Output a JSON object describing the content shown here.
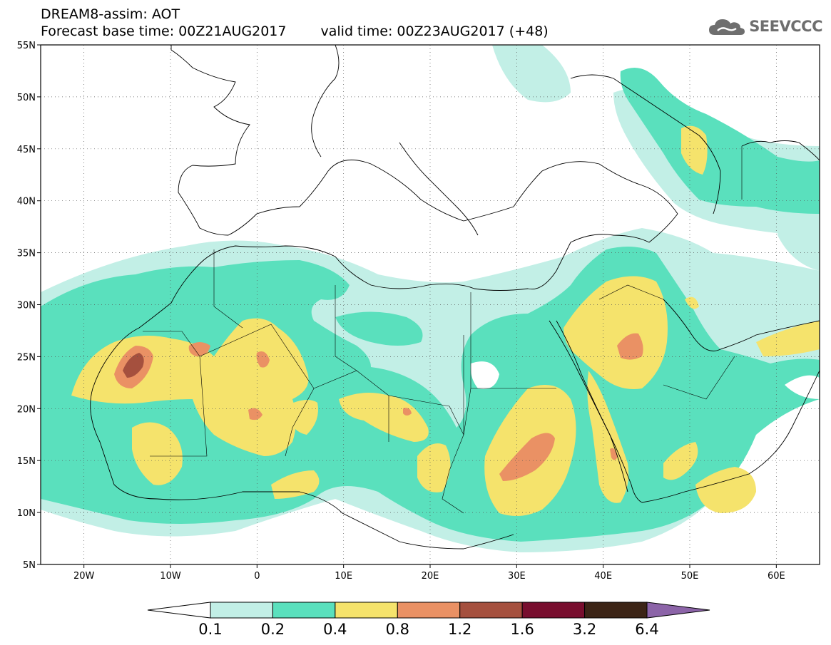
{
  "header": {
    "title_line1": "DREAM8-assim: AOT",
    "base_time": "Forecast base time: 00Z21AUG2017",
    "valid_time": "valid time: 00Z23AUG2017 (+48)",
    "logo_text": "SEEVCCC"
  },
  "map": {
    "lon_range": [
      -25,
      65
    ],
    "lat_range": [
      5,
      55
    ],
    "lat_labels": [
      "55N",
      "50N",
      "45N",
      "40N",
      "35N",
      "30N",
      "25N",
      "20N",
      "15N",
      "10N",
      "5N"
    ],
    "lon_labels": [
      "20W",
      "10W",
      "0",
      "10E",
      "20E",
      "30E",
      "40E",
      "50E",
      "60E"
    ],
    "grid": "dotted"
  },
  "legend": {
    "levels": [
      "0.1",
      "0.2",
      "0.4",
      "0.8",
      "1.2",
      "1.6",
      "3.2",
      "6.4"
    ],
    "colors": [
      "#ffffff",
      "#c2efe6",
      "#5ae0bd",
      "#f5e36c",
      "#ea9164",
      "#a5503e",
      "#780e2e",
      "#3c2416",
      "#8c64a8"
    ]
  },
  "colors": {
    "c1": "#c2efe6",
    "c2": "#5ae0bd",
    "c3": "#f5e36c",
    "c4": "#ea9164",
    "c5": "#a5503e"
  }
}
